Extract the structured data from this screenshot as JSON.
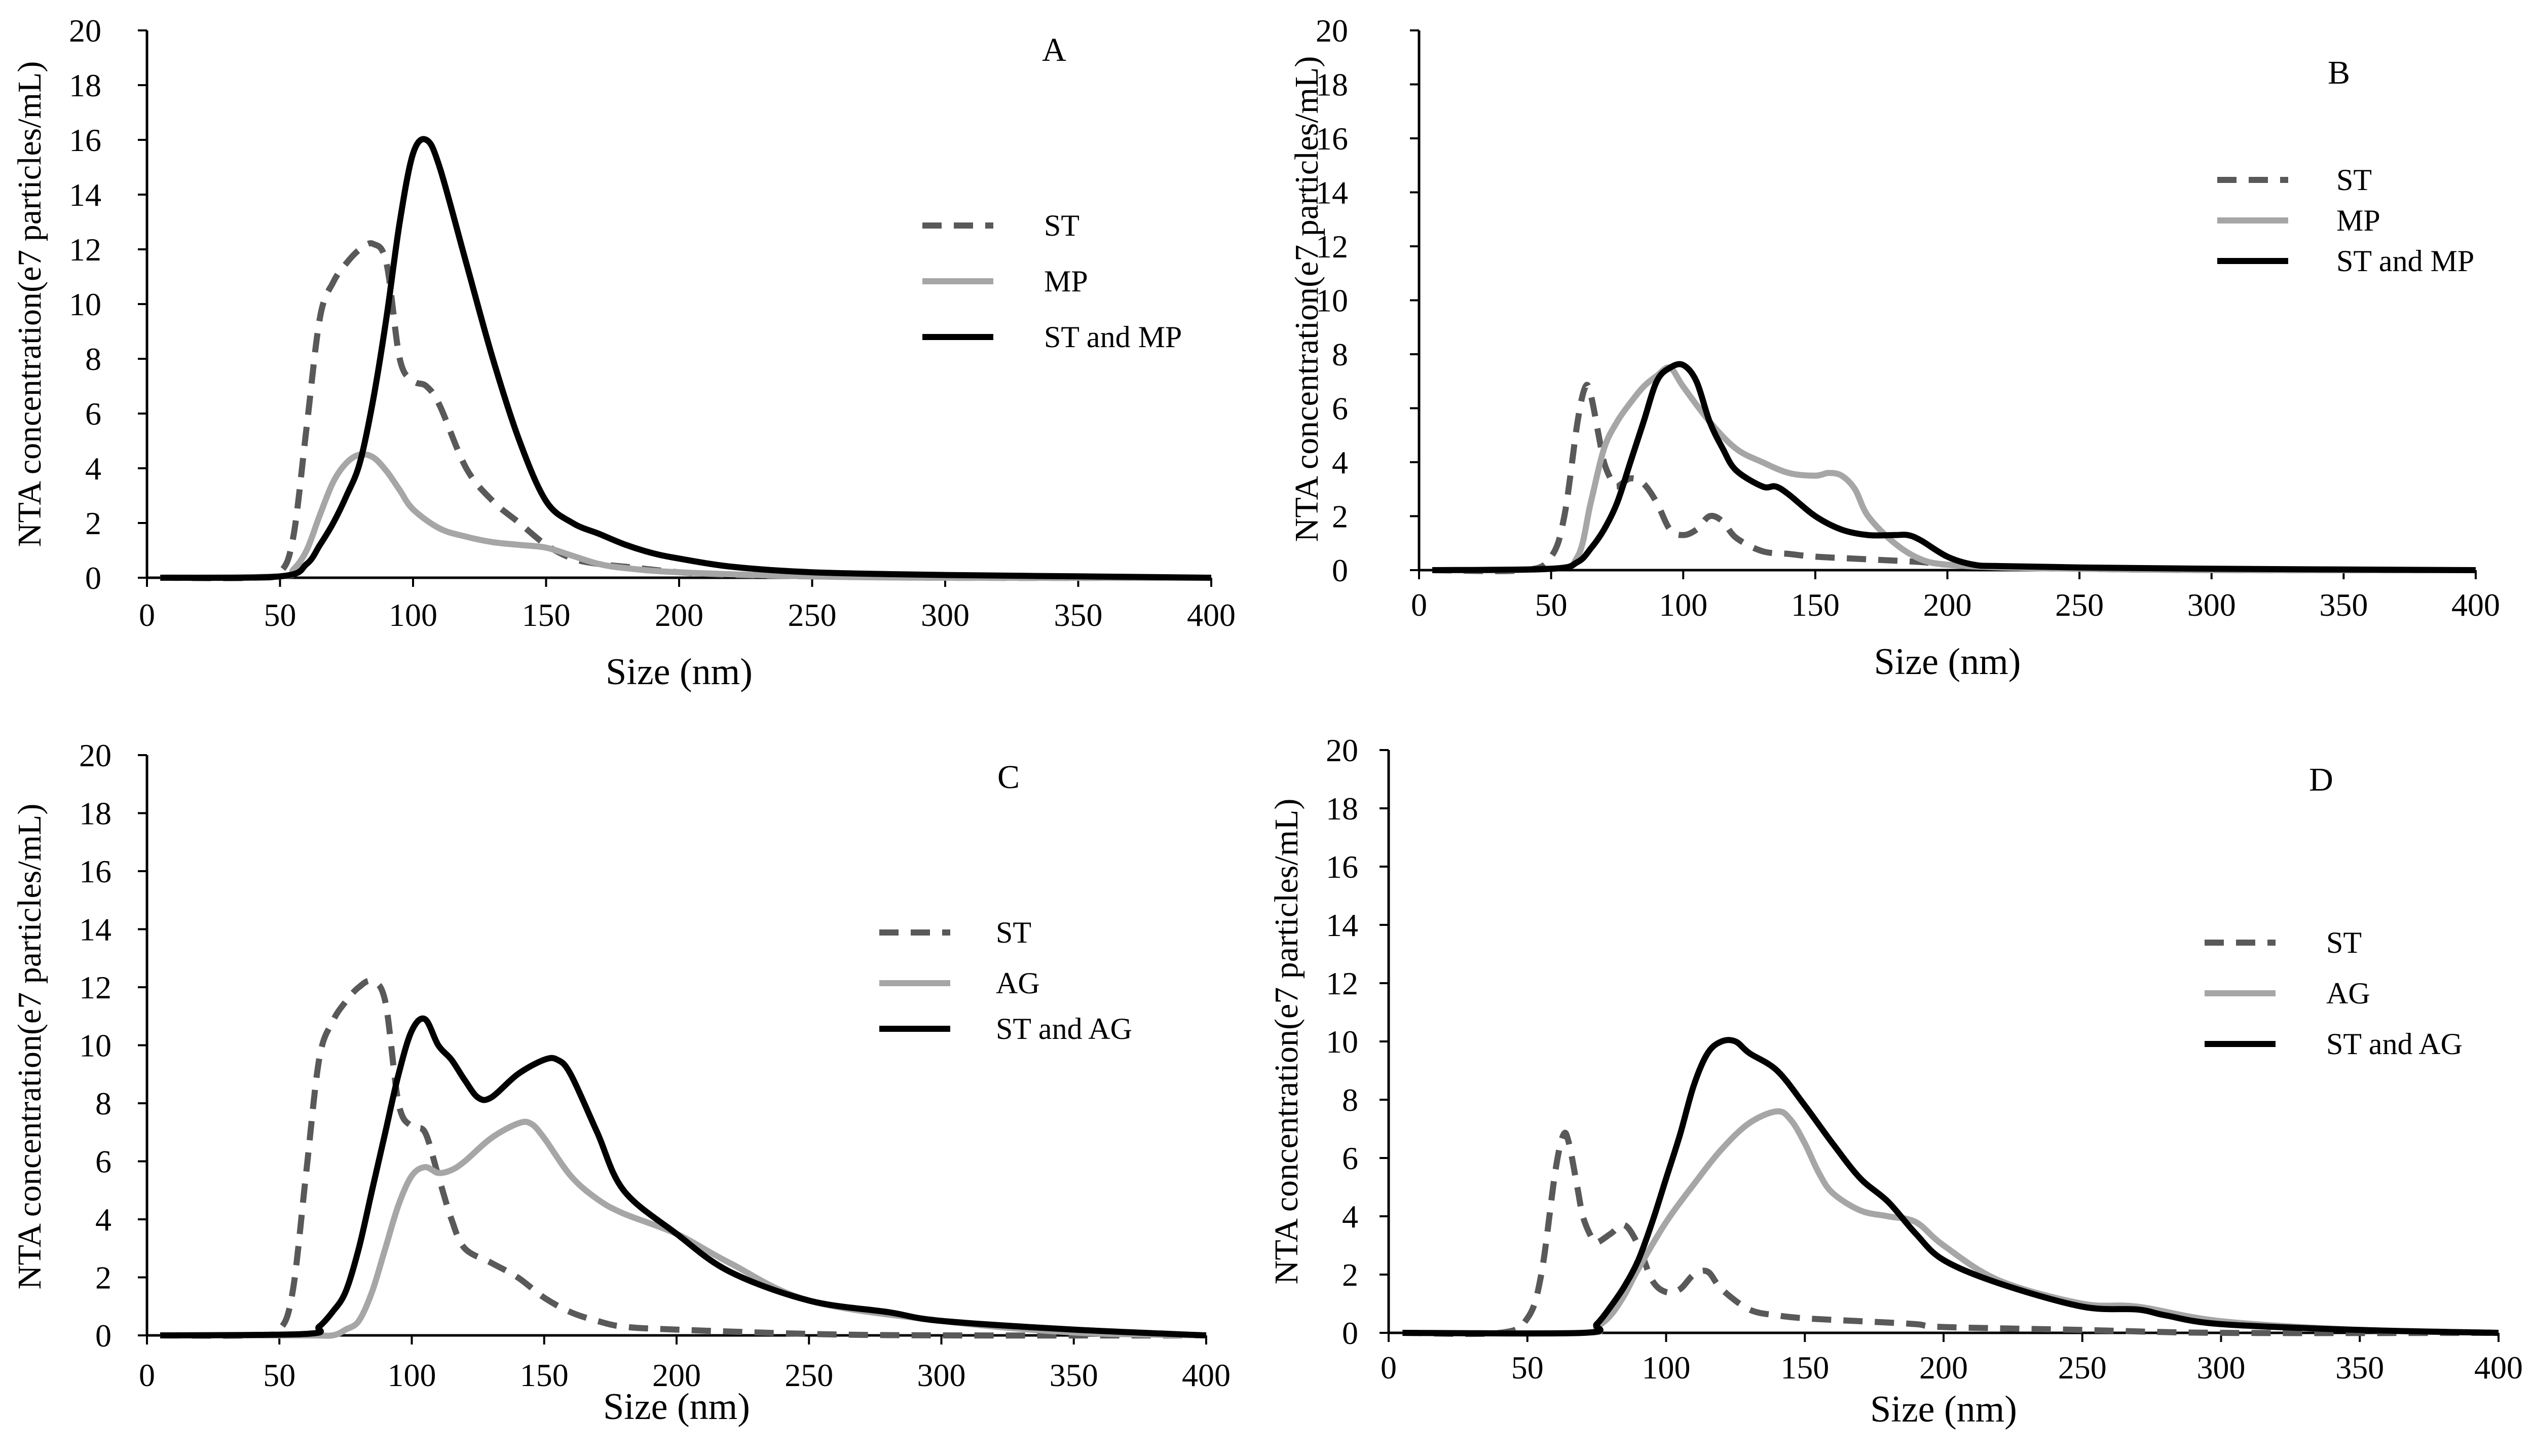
{
  "figure": {
    "description_panels": [
      "A",
      "B",
      "C",
      "D"
    ]
  },
  "colors": {
    "ST": "#595959",
    "MP": "#a6a6a6",
    "AG": "#a6a6a6",
    "combo": "#000000",
    "axis": "#000000"
  },
  "chart_data": [
    {
      "type": "line",
      "panel_label": "A",
      "xlabel": "Size (nm)",
      "ylabel": "NTA concentration(e7 particles/mL)",
      "xlim": [
        0,
        400
      ],
      "ylim": [
        0,
        20
      ],
      "xticks": [
        0,
        50,
        100,
        150,
        200,
        250,
        300,
        350,
        400
      ],
      "yticks": [
        0,
        2,
        4,
        6,
        8,
        10,
        12,
        14,
        16,
        18,
        20
      ],
      "series": [
        {
          "name": "ST",
          "style": "dashed",
          "color_key": "ST",
          "x": [
            5,
            40,
            50,
            55,
            60,
            65,
            70,
            75,
            80,
            85,
            90,
            95,
            100,
            105,
            110,
            120,
            130,
            140,
            150,
            160,
            170,
            180,
            200,
            220,
            250,
            300,
            400
          ],
          "y": [
            0,
            0,
            0.2,
            1.5,
            5.5,
            9.5,
            10.8,
            11.5,
            12,
            12.2,
            11.5,
            8,
            7.2,
            7,
            6.3,
            4,
            2.8,
            2,
            1.2,
            0.7,
            0.5,
            0.4,
            0.2,
            0.1,
            0.05,
            0,
            0
          ]
        },
        {
          "name": "MP",
          "style": "solid",
          "color_key": "MP",
          "x": [
            5,
            50,
            55,
            60,
            65,
            70,
            75,
            80,
            85,
            90,
            95,
            100,
            110,
            120,
            130,
            140,
            150,
            160,
            170,
            180,
            200,
            250,
            300,
            400
          ],
          "y": [
            0,
            0.05,
            0.3,
            1,
            2.3,
            3.5,
            4.2,
            4.5,
            4.4,
            3.9,
            3.2,
            2.5,
            1.8,
            1.5,
            1.3,
            1.2,
            1.1,
            0.8,
            0.5,
            0.35,
            0.2,
            0.05,
            0,
            0
          ]
        },
        {
          "name": "ST and MP",
          "style": "solid",
          "color_key": "combo",
          "x": [
            5,
            50,
            60,
            65,
            70,
            75,
            80,
            85,
            90,
            95,
            100,
            105,
            110,
            120,
            130,
            140,
            150,
            160,
            170,
            180,
            190,
            200,
            220,
            250,
            300,
            350,
            400
          ],
          "y": [
            0,
            0.05,
            0.5,
            1.2,
            2,
            3,
            4.2,
            6.5,
            9.5,
            13,
            15.5,
            16,
            15,
            11.5,
            8,
            5,
            2.8,
            2,
            1.6,
            1.2,
            0.9,
            0.7,
            0.4,
            0.2,
            0.1,
            0.05,
            0
          ]
        }
      ]
    },
    {
      "type": "line",
      "panel_label": "B",
      "xlabel": "Size (nm)",
      "ylabel": "NTA concentration(e7 particles/mL)",
      "xlim": [
        0,
        400
      ],
      "ylim": [
        0,
        20
      ],
      "xticks": [
        0,
        50,
        100,
        150,
        200,
        250,
        300,
        350,
        400
      ],
      "yticks": [
        0,
        2,
        4,
        6,
        8,
        10,
        12,
        14,
        16,
        18,
        20
      ],
      "series": [
        {
          "name": "ST",
          "style": "dashed",
          "color_key": "ST",
          "x": [
            5,
            40,
            50,
            55,
            60,
            63,
            65,
            68,
            70,
            73,
            75,
            80,
            85,
            90,
            95,
            100,
            105,
            110,
            115,
            120,
            130,
            140,
            150,
            170,
            190,
            200,
            220,
            250,
            300,
            400
          ],
          "y": [
            0,
            0,
            0.5,
            2,
            5.5,
            6.8,
            6.5,
            5,
            4,
            3.3,
            3.1,
            3.4,
            3.2,
            2.5,
            1.5,
            1.3,
            1.5,
            2,
            1.8,
            1.2,
            0.7,
            0.6,
            0.5,
            0.4,
            0.3,
            0.2,
            0.1,
            0.05,
            0,
            0
          ]
        },
        {
          "name": "MP",
          "style": "solid",
          "color_key": "MP",
          "x": [
            5,
            50,
            60,
            65,
            70,
            75,
            80,
            85,
            90,
            95,
            100,
            110,
            120,
            130,
            140,
            150,
            155,
            160,
            165,
            170,
            180,
            190,
            200,
            220,
            250,
            300,
            400
          ],
          "y": [
            0,
            0.05,
            0.5,
            2.5,
            4.5,
            5.5,
            6.2,
            6.8,
            7.2,
            7.5,
            6.8,
            5.5,
            4.5,
            4,
            3.6,
            3.5,
            3.6,
            3.5,
            3,
            2,
            1,
            0.4,
            0.2,
            0.1,
            0.05,
            0,
            0
          ]
        },
        {
          "name": "ST and MP",
          "style": "solid",
          "color_key": "combo",
          "x": [
            5,
            50,
            60,
            65,
            70,
            75,
            80,
            85,
            90,
            95,
            100,
            105,
            110,
            115,
            120,
            130,
            135,
            140,
            150,
            160,
            170,
            180,
            185,
            190,
            200,
            210,
            220,
            250,
            300,
            400
          ],
          "y": [
            0,
            0.05,
            0.3,
            0.8,
            1.5,
            2.5,
            4,
            5.5,
            7,
            7.5,
            7.6,
            7,
            5.5,
            4.5,
            3.7,
            3.1,
            3.1,
            2.8,
            2,
            1.5,
            1.3,
            1.3,
            1.3,
            1.1,
            0.5,
            0.2,
            0.15,
            0.1,
            0.05,
            0
          ]
        }
      ]
    },
    {
      "type": "line",
      "panel_label": "C",
      "xlabel": "Size (nm)",
      "ylabel": "NTA concentration(e7 particles/mL)",
      "xlim": [
        0,
        400
      ],
      "ylim": [
        0,
        20
      ],
      "xticks": [
        0,
        50,
        100,
        150,
        200,
        250,
        300,
        350,
        400
      ],
      "yticks": [
        0,
        2,
        4,
        6,
        8,
        10,
        12,
        14,
        16,
        18,
        20
      ],
      "series": [
        {
          "name": "ST",
          "style": "dashed",
          "color_key": "ST",
          "x": [
            5,
            40,
            50,
            55,
            60,
            65,
            70,
            75,
            80,
            85,
            90,
            95,
            100,
            105,
            110,
            115,
            120,
            130,
            140,
            150,
            160,
            170,
            180,
            200,
            250,
            300,
            400
          ],
          "y": [
            0,
            0,
            0.2,
            1.5,
            5.5,
            9.5,
            10.8,
            11.5,
            12,
            12.2,
            11.5,
            8,
            7.2,
            7,
            5.5,
            4,
            3,
            2.5,
            2,
            1.3,
            0.8,
            0.5,
            0.3,
            0.2,
            0.05,
            0,
            0
          ]
        },
        {
          "name": "AG",
          "style": "solid",
          "color_key": "AG",
          "x": [
            5,
            60,
            70,
            75,
            80,
            85,
            90,
            95,
            100,
            105,
            110,
            115,
            120,
            130,
            140,
            145,
            150,
            160,
            170,
            180,
            200,
            220,
            250,
            300,
            350,
            400
          ],
          "y": [
            0,
            0,
            0,
            0.2,
            0.5,
            1.5,
            3,
            4.5,
            5.5,
            5.8,
            5.6,
            5.7,
            6,
            6.8,
            7.3,
            7.3,
            6.8,
            5.5,
            4.7,
            4.2,
            3.5,
            2.5,
            1.2,
            0.5,
            0.1,
            0
          ]
        },
        {
          "name": "ST and AG",
          "style": "solid",
          "color_key": "combo",
          "x": [
            5,
            60,
            65,
            70,
            75,
            80,
            85,
            90,
            95,
            100,
            105,
            110,
            115,
            120,
            125,
            130,
            140,
            150,
            155,
            160,
            170,
            180,
            200,
            220,
            250,
            280,
            300,
            350,
            400
          ],
          "y": [
            0,
            0.05,
            0.3,
            0.8,
            1.5,
            3,
            5,
            7,
            9,
            10.5,
            10.9,
            10,
            9.5,
            8.8,
            8.2,
            8.2,
            9,
            9.5,
            9.5,
            9,
            7,
            5,
            3.5,
            2.2,
            1.2,
            0.8,
            0.5,
            0.2,
            0
          ]
        }
      ]
    },
    {
      "type": "line",
      "panel_label": "D",
      "xlabel": "Size (nm)",
      "ylabel": "NTA concentration(e7 particles/mL)",
      "xlim": [
        0,
        400
      ],
      "ylim": [
        0,
        20
      ],
      "xticks": [
        0,
        50,
        100,
        150,
        200,
        250,
        300,
        350,
        400
      ],
      "yticks": [
        0,
        2,
        4,
        6,
        8,
        10,
        12,
        14,
        16,
        18,
        20
      ],
      "series": [
        {
          "name": "ST",
          "style": "dashed",
          "color_key": "ST",
          "x": [
            5,
            40,
            50,
            55,
            60,
            63,
            65,
            68,
            70,
            73,
            75,
            80,
            85,
            90,
            95,
            100,
            105,
            110,
            115,
            120,
            130,
            140,
            150,
            170,
            190,
            200,
            250,
            300,
            400
          ],
          "y": [
            0,
            0,
            0.5,
            2,
            5.5,
            6.8,
            6.5,
            5,
            4,
            3.3,
            3.1,
            3.4,
            3.7,
            3,
            1.8,
            1.4,
            1.5,
            2,
            2.1,
            1.5,
            0.8,
            0.6,
            0.5,
            0.4,
            0.3,
            0.2,
            0.1,
            0,
            0
          ]
        },
        {
          "name": "AG",
          "style": "solid",
          "color_key": "AG",
          "x": [
            5,
            70,
            75,
            80,
            85,
            90,
            100,
            110,
            120,
            130,
            140,
            145,
            150,
            155,
            160,
            170,
            180,
            190,
            200,
            220,
            250,
            270,
            300,
            350,
            400
          ],
          "y": [
            0,
            0,
            0.2,
            0.6,
            1.3,
            2.2,
            3.8,
            5.1,
            6.3,
            7.2,
            7.6,
            7.3,
            6.5,
            5.5,
            4.8,
            4.2,
            4,
            3.8,
            3,
            1.8,
            1,
            0.9,
            0.4,
            0.1,
            0
          ]
        },
        {
          "name": "ST and AG",
          "style": "solid",
          "color_key": "combo",
          "x": [
            5,
            70,
            75,
            80,
            85,
            90,
            95,
            100,
            105,
            110,
            115,
            120,
            125,
            130,
            140,
            150,
            160,
            170,
            180,
            190,
            200,
            220,
            250,
            270,
            280,
            300,
            350,
            400
          ],
          "y": [
            0,
            0,
            0.3,
            0.9,
            1.6,
            2.5,
            3.8,
            5.3,
            6.8,
            8.5,
            9.6,
            10,
            10,
            9.6,
            9,
            7.8,
            6.5,
            5.3,
            4.5,
            3.4,
            2.5,
            1.7,
            0.9,
            0.8,
            0.6,
            0.3,
            0.1,
            0
          ]
        }
      ]
    }
  ]
}
